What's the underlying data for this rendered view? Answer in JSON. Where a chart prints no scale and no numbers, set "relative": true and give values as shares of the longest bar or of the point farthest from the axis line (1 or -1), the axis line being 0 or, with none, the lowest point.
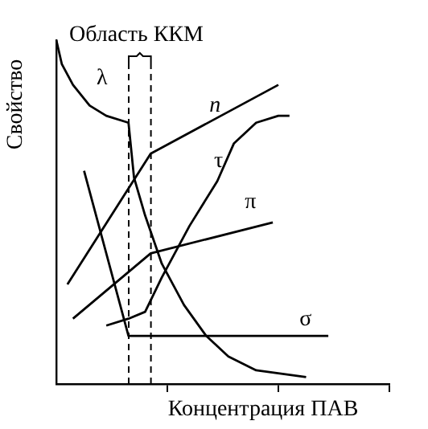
{
  "chart_data": {
    "type": "line",
    "xlabel": "Концентрация ПАВ",
    "ylabel": "Свойство",
    "relative": true,
    "legend": false,
    "grid": false,
    "marker": "none",
    "line_style": "solid",
    "categories": [
      null,
      null,
      null,
      null,
      null,
      null,
      null,
      null,
      null,
      null,
      null,
      null,
      null,
      null,
      null,
      null,
      null,
      null,
      null,
      null,
      null,
      null,
      null,
      null,
      null,
      null,
      null,
      null,
      null,
      null,
      null,
      null,
      null,
      null,
      null,
      null,
      null,
      null,
      null,
      null,
      null,
      null,
      null,
      null,
      null,
      null,
      null,
      null,
      null,
      null,
      null,
      null,
      null,
      null,
      null,
      null,
      null,
      null,
      null,
      null,
      null
    ],
    "series": [
      {
        "name": "λ",
        "color": "#000000",
        "values": [
          1,
          0.93,
          null,
          0.87,
          null,
          null,
          0.81,
          null,
          null,
          0.78,
          null,
          null,
          null,
          0.76,
          0.6,
          null,
          0.49,
          null,
          null,
          0.35,
          null,
          null,
          null,
          0.23,
          null,
          null,
          null,
          0.14,
          null,
          null,
          null,
          0.08,
          null,
          null,
          null,
          null,
          0.04,
          null,
          null,
          null,
          null,
          null,
          null,
          null,
          null,
          0.02,
          null,
          null,
          null,
          null,
          null,
          null,
          null,
          null,
          null,
          null,
          null,
          null,
          null,
          null,
          null
        ]
      },
      {
        "name": "n",
        "color": "#000000",
        "values": [
          null,
          null,
          0.29,
          null,
          null,
          null,
          null,
          null,
          null,
          null,
          null,
          null,
          null,
          null,
          null,
          null,
          null,
          0.67,
          null,
          null,
          null,
          null,
          null,
          null,
          null,
          null,
          null,
          null,
          null,
          null,
          null,
          null,
          null,
          null,
          null,
          null,
          null,
          null,
          null,
          null,
          0.87,
          null,
          null,
          null,
          null,
          null,
          null,
          null,
          null,
          null,
          null,
          null,
          null,
          null,
          null,
          null,
          null,
          null,
          null,
          null,
          null
        ]
      },
      {
        "name": "τ",
        "color": "#000000",
        "values": [
          null,
          null,
          null,
          null,
          null,
          null,
          null,
          null,
          null,
          0.17,
          null,
          null,
          null,
          0.19,
          null,
          null,
          0.21,
          null,
          null,
          0.31,
          null,
          null,
          null,
          null,
          0.46,
          null,
          null,
          null,
          null,
          0.59,
          null,
          null,
          0.7,
          null,
          null,
          null,
          0.76,
          null,
          null,
          null,
          0.78,
          null,
          0.78,
          null,
          null,
          null,
          null,
          null,
          null,
          null,
          null,
          null,
          null,
          null,
          null,
          null,
          null,
          null,
          null,
          null,
          null
        ]
      },
      {
        "name": "π",
        "color": "#000000",
        "values": [
          null,
          null,
          null,
          0.19,
          null,
          null,
          null,
          null,
          null,
          null,
          null,
          null,
          null,
          null,
          null,
          null,
          null,
          0.38,
          null,
          null,
          null,
          null,
          null,
          null,
          null,
          null,
          null,
          null,
          null,
          null,
          null,
          null,
          null,
          null,
          null,
          null,
          null,
          null,
          null,
          0.47,
          null,
          null,
          null,
          null,
          null,
          null,
          null,
          null,
          null,
          null,
          null,
          null,
          null,
          null,
          null,
          null,
          null,
          null,
          null,
          null,
          null
        ]
      },
      {
        "name": "σ",
        "color": "#000000",
        "values": [
          null,
          null,
          null,
          null,
          null,
          0.62,
          null,
          null,
          null,
          null,
          null,
          null,
          null,
          0.14,
          null,
          null,
          null,
          null,
          null,
          null,
          null,
          null,
          null,
          null,
          null,
          null,
          null,
          null,
          null,
          null,
          null,
          null,
          null,
          null,
          null,
          null,
          null,
          null,
          null,
          null,
          null,
          null,
          null,
          null,
          null,
          null,
          null,
          null,
          null,
          0.14,
          null,
          null,
          null,
          null,
          null,
          null,
          null,
          null,
          null,
          null,
          null
        ]
      }
    ],
    "annotations": [
      "Область ККМ"
    ]
  }
}
